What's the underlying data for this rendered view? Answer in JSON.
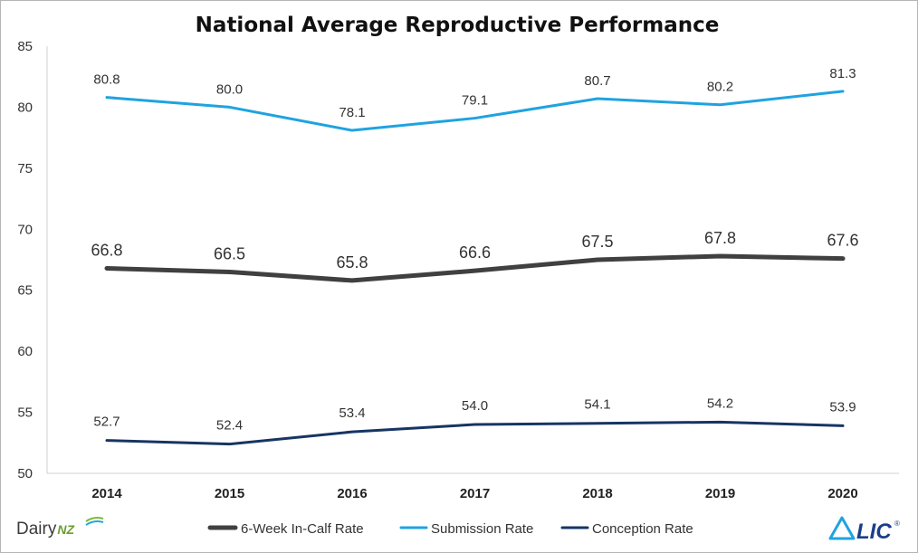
{
  "chart_data": {
    "type": "line",
    "title": "National Average Reproductive Performance",
    "categories": [
      "2014",
      "2015",
      "2016",
      "2017",
      "2018",
      "2019",
      "2020"
    ],
    "ylim": [
      50,
      85
    ],
    "yticks": [
      "50",
      "55",
      "60",
      "65",
      "70",
      "75",
      "80",
      "85"
    ],
    "xlabel": "",
    "ylabel": "",
    "grid": false,
    "legend_position": "bottom",
    "series": [
      {
        "name": "6-Week In-Calf Rate",
        "color": "#404040",
        "values": [
          66.8,
          66.5,
          65.8,
          66.6,
          67.5,
          67.8,
          67.6
        ],
        "labels": [
          "66.8",
          "66.5",
          "65.8",
          "66.6",
          "67.5",
          "67.8",
          "67.6"
        ]
      },
      {
        "name": "Submission Rate",
        "color": "#1fa3e0",
        "values": [
          80.8,
          80.0,
          78.1,
          79.1,
          80.7,
          80.2,
          81.3
        ],
        "labels": [
          "80.8",
          "80.0",
          "78.1",
          "79.1",
          "80.7",
          "80.2",
          "81.3"
        ]
      },
      {
        "name": "Conception Rate",
        "color": "#163563",
        "values": [
          52.7,
          52.4,
          53.4,
          54.0,
          54.1,
          54.2,
          53.9
        ],
        "labels": [
          "52.7",
          "52.4",
          "53.4",
          "54.0",
          "54.1",
          "54.2",
          "53.9"
        ]
      }
    ]
  },
  "logos": {
    "dairynz": {
      "word1": "Dairy",
      "word2": "NZ"
    },
    "lic": {
      "text": "LIC",
      "mark": "®"
    }
  }
}
